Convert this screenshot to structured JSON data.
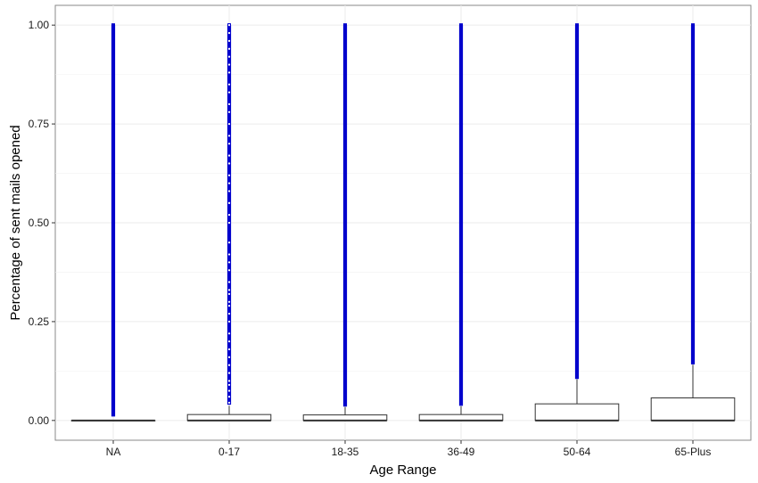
{
  "chart_data": {
    "type": "boxplot",
    "title": "",
    "xlabel": "Age Range",
    "ylabel": "Percentage of sent mails opened",
    "categories": [
      "NA",
      "0-17",
      "18-35",
      "36-49",
      "50-64",
      "65-Plus"
    ],
    "ylim": [
      -0.05,
      1.05
    ],
    "yticks": [
      0.0,
      0.25,
      0.5,
      0.75,
      1.0
    ],
    "ytick_labels": [
      "0.00",
      "0.25",
      "0.50",
      "0.75",
      "1.00"
    ],
    "grid": true,
    "outlier_color": "#0000cc",
    "boxes": [
      {
        "category": "NA",
        "min": 0,
        "q1": 0,
        "median": 0,
        "q3": 0,
        "whisker_high": 0,
        "outliers_dense_from": 0.01,
        "outliers_sparse": []
      },
      {
        "category": "0-17",
        "min": 0,
        "q1": 0,
        "median": 0,
        "q3": 0.015,
        "whisker_high": 0.037,
        "outliers_dense_from": 0.04,
        "outliers_sparse": [
          0.045,
          0.06,
          0.075,
          0.09,
          0.1,
          0.12,
          0.14,
          0.16,
          0.18,
          0.2,
          0.22,
          0.25,
          0.27,
          0.29,
          0.3,
          0.32,
          0.33,
          0.35,
          0.38,
          0.4,
          0.42,
          0.45,
          0.5,
          0.52,
          0.55,
          0.58,
          0.6,
          0.62,
          0.65,
          0.67,
          0.7,
          0.72,
          0.75,
          0.78,
          0.8,
          0.83,
          0.85,
          0.88,
          0.9,
          0.92,
          0.94,
          0.96,
          0.98,
          1.0
        ]
      },
      {
        "category": "18-35",
        "min": 0,
        "q1": 0,
        "median": 0,
        "q3": 0.014,
        "whisker_high": 0.034,
        "outliers_dense_from": 0.035,
        "outliers_sparse": []
      },
      {
        "category": "36-49",
        "min": 0,
        "q1": 0,
        "median": 0,
        "q3": 0.015,
        "whisker_high": 0.036,
        "outliers_dense_from": 0.037,
        "outliers_sparse": []
      },
      {
        "category": "50-64",
        "min": 0,
        "q1": 0,
        "median": 0,
        "q3": 0.042,
        "whisker_high": 0.104,
        "outliers_dense_from": 0.105,
        "outliers_sparse": []
      },
      {
        "category": "65-Plus",
        "min": 0,
        "q1": 0,
        "median": 0,
        "q3": 0.057,
        "whisker_high": 0.141,
        "outliers_dense_from": 0.142,
        "outliers_sparse": []
      }
    ]
  }
}
